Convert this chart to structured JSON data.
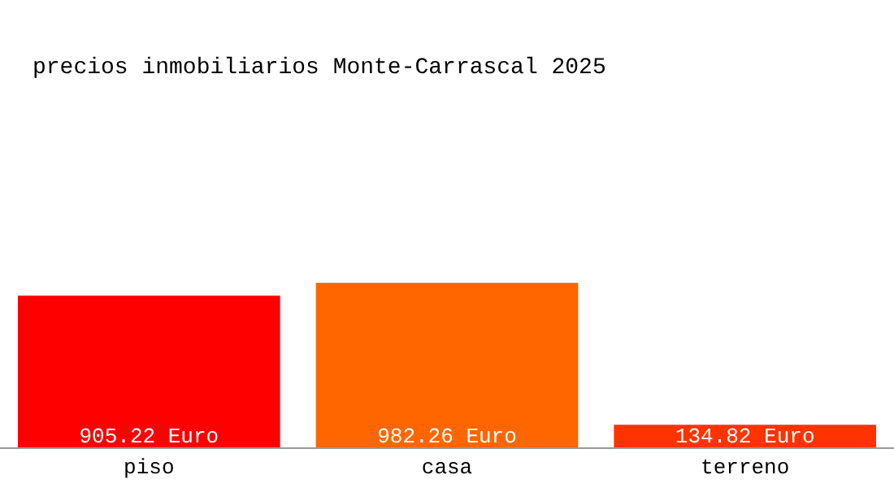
{
  "chart_data": {
    "type": "bar",
    "title": "precios inmobiliarios Monte-Carrascal 2025",
    "categories": [
      "piso",
      "casa",
      "terreno"
    ],
    "values": [
      905.22,
      982.26,
      134.82
    ],
    "colors": [
      "#ff0000",
      "#ff6600",
      "#ff3300"
    ],
    "value_labels": [
      "905.22 Euro",
      "982.26 Euro",
      "134.82 Euro"
    ]
  }
}
